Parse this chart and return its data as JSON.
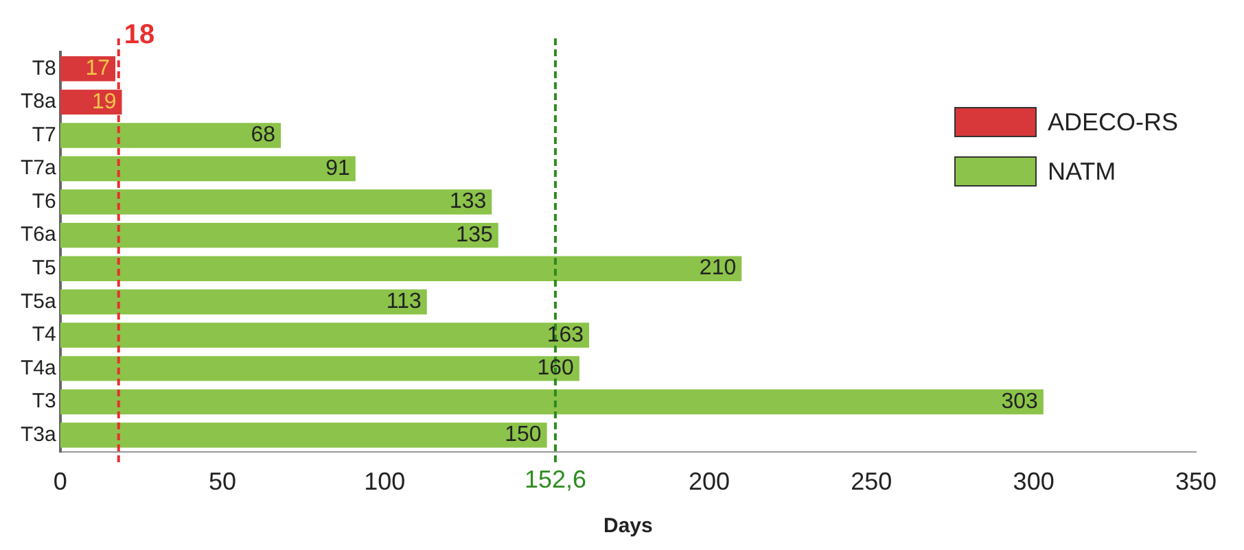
{
  "chart_data": {
    "type": "bar",
    "orientation": "horizontal",
    "xlabel": "Days",
    "categories": [
      "T8",
      "T8a",
      "T7",
      "T7a",
      "T6",
      "T6a",
      "T5",
      "T5a",
      "T4",
      "T4a",
      "T3",
      "T3a"
    ],
    "series": [
      {
        "name": "ADECO-RS",
        "color": "#d9383a",
        "values": [
          17,
          19,
          null,
          null,
          null,
          null,
          null,
          null,
          null,
          null,
          null,
          null
        ]
      },
      {
        "name": "NATM",
        "color": "#8cc34a",
        "values": [
          null,
          null,
          68,
          91,
          133,
          135,
          210,
          113,
          163,
          160,
          303,
          150
        ]
      }
    ],
    "xlim": [
      0,
      350
    ],
    "xticks": [
      0,
      50,
      100,
      200,
      250,
      300,
      350
    ],
    "ref_lines": [
      {
        "axis": "x",
        "value": 18,
        "label": "18",
        "color": "#e8302f",
        "line_style": "dashed"
      },
      {
        "axis": "x",
        "value": 152.6,
        "label": "152,6",
        "color": "#2e8b20",
        "line_style": "dashed"
      }
    ],
    "data_labels": true,
    "grid": false,
    "legend": "top right"
  }
}
